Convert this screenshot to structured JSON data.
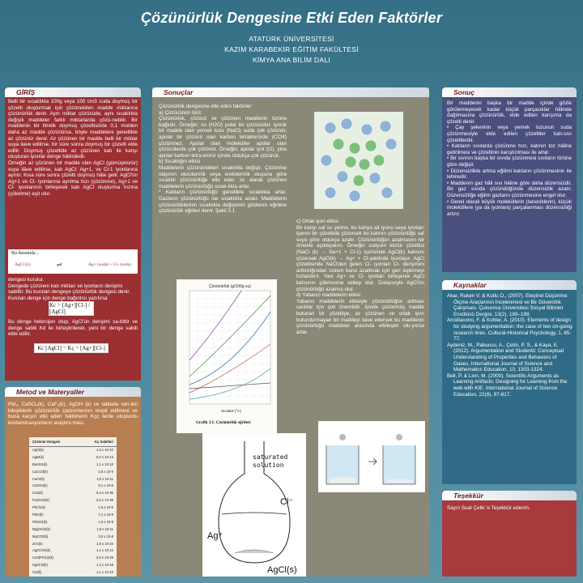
{
  "header": {
    "title": "Çözünürlük Dengesine Etki Eden Faktörler",
    "line1": "ATATÜRK ÜNİVERSİTESİ",
    "line2": "KAZIM KARABEKİR EĞİTİM FAKÜLTESİ",
    "line3": "KİMYA ANA BİLİM DALI"
  },
  "giris": {
    "heading": "GİRİŞ",
    "p1": "Belli bir sıcaklıkta 100g veya 100 cm3 suda doymuş bir çözelti oluşturmak için çözünebilen madde miktarına çözünürlük denir. Aynı miktar çözücüde, aynı sıcaklıkta değişik maddeler farklı miktarlarda çözü-nebilir. Bir maddenin bir litrelik doymuş çözeltisinde 0,1 molden daha az madde çözünürse, böyle maddelere genellikle az çözünür denir. Az çözünen bir madde belli bir miktar suya ilave edilirse, bir süre sonra doymuş bir çözelti elde edilir. Doymuş çözeltide az çözünen katı ile katıyı oluşturan iyonlar denge hâlindedir.\nÖrneğin az çözünen bir madde olan AgCl (gümüşklorür) suya ilâve edilirse, katı AgCl; Ag+1, ve Cl-1 iyonlarına ayrılır. Kısa süre sonra çözelti doymuş hâle gelir. AgCl'ün Ag+1 ve Cl- iyonlarına ayrılma hızı (çözünme), Ag+1 ve Cl- iyonlarının birleşerek katı AgCl oluşturma hızına (çökelme) eşit olur.",
    "box_label": "Bu durumda ;",
    "box_left": "AgCl (k)",
    "box_right": "Ag+ (suda) + Cl- (suda)",
    "p2": "dengesi kurulur.\n Dengede çözünen katı miktarı ve iyonların derişimi sabittir. Bu kurulan dengeye çözünürlük dengesi denir. Kurulan denge için denge bağıntısı yazılırsa",
    "eq1": "Kc = [Ag+][Cl-] / [AgCl]",
    "p3": "Bu denge heterojen olup, AgCl'ün derişimi sa-bittir ve denge sabiti Kd ile birleştirilerek, yeni bir denge sabiti elde edilir.",
    "eq2": "Kc [AgCl] = Kç = [Ag+][Cl-]"
  },
  "metod": {
    "heading": "Metod ve Materyaller",
    "p1": "PbI₂, CaSO₄(k), CaF₂(k), AgOH (k) ve tabloda veri-len bileşiklerin çözünürlük çarpımlarının tespit edilmesi ve buna karşın etki eden faktörlerin Kçç lerde oluşturdu kontaminasyonların araştırıl-ması.",
    "table_col1": "Çözünür Dengesi",
    "table_col2": "Kç Sabitleri",
    "table_rows": [
      [
        "AgCl(k)",
        "1,8 x 10-10"
      ],
      [
        "AgBr(k)",
        "5,0 x 10-13"
      ],
      [
        "BaSO4(k)",
        "1,1 x 10-10"
      ],
      [
        "CaCO3(k)",
        "2,8 x 10-9"
      ],
      [
        "CaF2(k)",
        "4,0 x 10-11"
      ],
      [
        "CaSO4(k)",
        "9,1 x 10-6"
      ],
      [
        "CuS(k)",
        "6,3 x 10-36"
      ],
      [
        "Fe(OH)3(k)",
        "2,6 x 10-39"
      ],
      [
        "PbCl2(k)",
        "1,6 x 10-5"
      ],
      [
        "PbI2(k)",
        "7,1 x 10-9"
      ],
      [
        "PbSO4(k)",
        "1,6 x 10-8"
      ],
      [
        "Mg(OH)2(k)",
        "1,8 x 10-11"
      ],
      [
        "MgCO3(k)",
        "3,5 x 10-8"
      ],
      [
        "ZnS(k)",
        "1,6 x 10-24"
      ],
      [
        "Ag2CrO4(k)",
        "1,1 x 10-12"
      ],
      [
        "Ca3(PO4)2(k)",
        "2,0 x 10-29"
      ],
      [
        "Hg2Cl2(k)",
        "1,3 x 10-18"
      ],
      [
        "CuI(k)",
        "1,1 x 10-12"
      ],
      [
        "Zn(OH)2(k)",
        "1,2 x 10-17"
      ]
    ]
  },
  "sonuclar": {
    "heading": "Sonuçlar",
    "left": "Çözünürlük dengesine etki eden faktörler\na) Çözücünün türü:\nÇözünürlük, çözücü ve çözünen maddenin türüne bağlıdır. Örneğin; su (H2O) polar bir çözücüdür. iyonik bir madde olan yemek tuzu (NaCl) suda çok çözünür, apolar bir çözücü olan karbon tetraklorürde (CCl4) çözünmez. Apolar olan moleküller apolar olan çözücülerde çok çözünür. Örneğin, apolar iyot (I2), yine apolar karbon tetra-klorür içinde oldukça çok çözünür.\nb) Sıcaklığın etkisi\nMaddelerin çözünürlükleri sıcaklıkla değişir. Çözünme olayının ekzotermik veya endotermik oluşuna göre sıcaklık çözünürlüğe etki eder. Isı alarak çözünen maddelerin çözünürlüğü sıcak-lıkla artar.\n * Katıların çözünürlüğü genellikle sıcaklıkla artar. Gazların çözünürlüğü ise sıcaklıkla azalır. Maddelerin çözünürlüklerinin sıcaklıkla değişimini gösteren eğrilere çözünürlük eğrileri denir. Şekil 3.1",
    "right": "c) Ortak iyon etkisi\nBir katıyı saf su yerine, bu katıya ait iyonu veya iyonları içeren bir çözeltide çözersek bu katının çözünürlüğü saf suya göre oldukça azalır. Çözünürlüğün azalmasını bir örnekle açıklayalım. Örneğin sodyum klorür çözeltisi (NaCl (k) → Na+1 + Cl-1) içerisinde AgCl(k) katısını çözersek AgCl(k) → Ag+ + Cl-şeklinde iyonlaşır. AgCl çözeltisinde NaCl'den gelen Cl- iyonları Cl- derişimini arttırdığından sistem bunu azaltmak için geri tepkimeyi hızlandırır. Yani Ag+ ve Cl- iyonları birleşerek AgCl katısının çökmesine sebep olur. Dolayısıyle AgCl'ün çözünürlüğü azalmış olur.\nd) Yabancı maddelerin etkisi\nYabancı maddelerin etkisiyle çözünürlüğün artması canlılar için çok önemlidir. İçinde çözünmüş madde bulunan bir çözeltiye, az çözünen ve ortak iyon bulundurmayan bir maddeyi ilave edersek bu maddenin çözünürlüğü maddeler arasında etkileşim olu-yorsa artar.",
    "chart_title": "Çözünürlük (g/100g su)",
    "chart_xlabel": "Sıcaklık (°C)",
    "chart_caption": "Grafik 3.1: Çözünürlük eğrileri",
    "flask_label1": "saturated",
    "flask_label2": "solution",
    "flask_ion1": "Ag⁺",
    "flask_ion2": "Cl⁻",
    "flask_solid": "AgCl(s)"
  },
  "sonuc": {
    "heading": "Sonuç",
    "text": "Bir maddenin başka bir madde içinde gözle görülemeyecek kadar küçük parçacıklar hâlinde dağılmasına çözünürlük, elde edilen karışıma da çözelti denir.\n• Çay şekerinin veya yemek tuzunun suda çözünmesiyle elde edilen çözeltiler katı-sıvı çözeltilerdir.\n• Katıların sıvılarda çözünme hızı, katının toz hâline getirilmesi ve çözeltinin karıştırılması ile artar.\n• Bir sıvının başka bir sıvıda çözünmesi sıvıların türüne göre değişir.\n• Düzensizlikte artma eğilimi katıların çözünmesinin ile lehinedir.\n• Maddenin gaz hâli sıvı hâline göre daha düzensizdir. Bir gaz sıvıda çözündüğünde düzensizlik azalır. Düzensizliğe eğilim gazların çözünmesine engel olur.\n• Genel olarak büyük moleküllerin (taneciklerin), küçük moleküllere (ya da iyonlara) parçalanması düzensizliği artırır."
  },
  "kaynak": {
    "heading": "Kaynaklar",
    "refs": [
      "Akar, Ruken V. & Kutlu O., (2007). Eleştirel Düşünme: Ölçme Araçlarının İncelenmesi ve Bir Güvenirlik Çalışması. Çukurova Üniversitesi Sosyal Bilimler Enstitüsü Dergisi, 13(2), 189–199.",
      "Arcidiacono, F. & Kohler, A. (2010). Elements of design for studying argumentation: the case of two on-going research lines. Cultural-Historical Psychology, 1, 65-77.",
      "Aydeniz, M., Pabuccu, A., Çetin, P. S., & Kaya, E. (2012). Argumentation and Students' Conceptual Understanding of Properties and Behaviors of Gases. International Journal of Science and Mathematics Education, 10, 1303-1324.",
      "Bell, P. & Linn, M. (2000). Scientific Arguments as Learning Artifacts: Designing for Learning from the web with KIE. International Journal of Science Education, 22(8), 97-817."
    ]
  },
  "tesekkur": {
    "heading": "Teşekkür",
    "text": "Sayın Suat Çelik 'e Teşekkür ederim."
  },
  "colors": {
    "background": "#4d8aa0",
    "giris": "#9b2f32",
    "metod": "#b77e52",
    "sonuclar": "#8a8876",
    "sonuc": "#4a4f7e",
    "kaynak": "#2f6b86",
    "tesekkur": "#a83a3d"
  }
}
